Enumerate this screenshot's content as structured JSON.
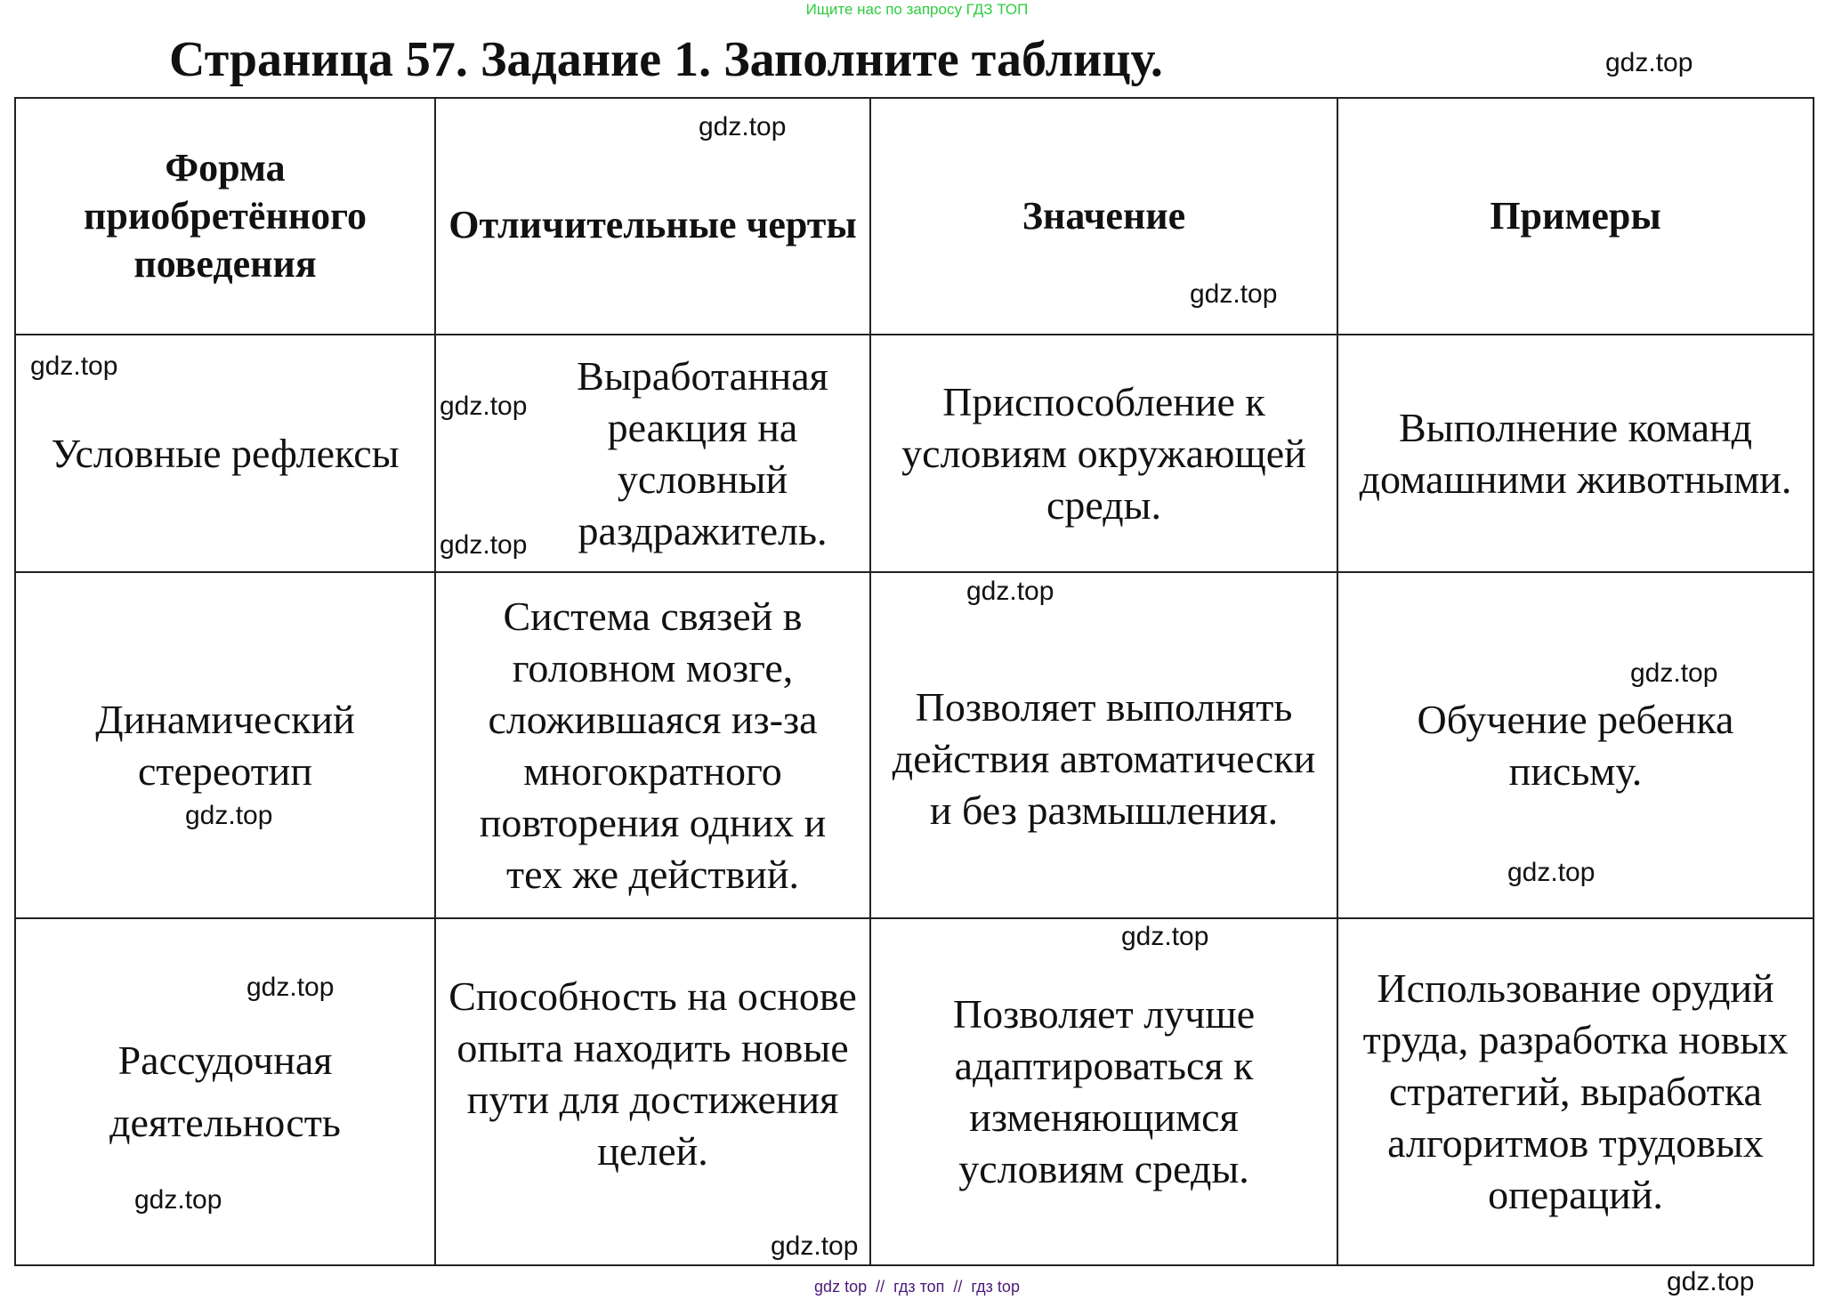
{
  "banner": "Ищите нас по запросу ГДЗ ТОП",
  "title": "Страница 57. Задание 1. Заполните таблицу.",
  "watermark": "gdz.top",
  "footer": "gdz top  //  гдз топ  //  гдз top",
  "table": {
    "headers": [
      "Форма приобретённого поведения",
      "Отличительные черты",
      "Значение",
      "Примеры"
    ],
    "rows": [
      [
        "Условные рефлексы",
        "Выработанная реакция на условный раздражитель.",
        "Приспособление к условиям окружающей среды.",
        "Выполнение команд домашними животными."
      ],
      [
        "Динамический стереотип",
        "Система связей в головном мозге, сложившаяся из-за многократного повторения одних и тех же действий.",
        "Позволяет выполнять действия автоматически и без размышления.",
        "Обучение ребенка письму."
      ],
      [
        "Рассудочная деятельность",
        "Способность на основе опыта находить новые пути для достижения целей.",
        "Позволяет лучше адаптироваться к изменяющимся условиям среды.",
        "Использование орудий труда, разработка новых стратегий, выработка алгоритмов трудовых операций."
      ]
    ]
  }
}
